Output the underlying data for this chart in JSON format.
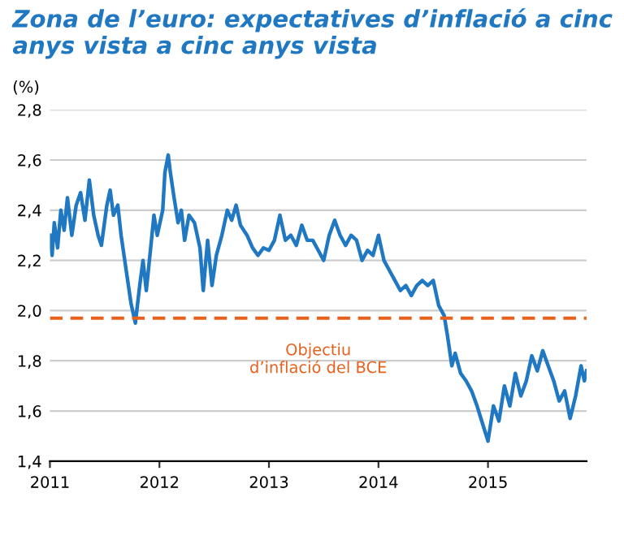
{
  "chart_data": {
    "type": "line",
    "title": "Zona de l’euro: expectatives d’inflació a cinc anys vista a cinc anys vista",
    "ylabel": "(%)",
    "x": [
      2011.0,
      2011.02,
      2011.04,
      2011.07,
      2011.1,
      2011.13,
      2011.16,
      2011.2,
      2011.24,
      2011.28,
      2011.32,
      2011.36,
      2011.4,
      2011.44,
      2011.47,
      2011.52,
      2011.55,
      2011.58,
      2011.62,
      2011.65,
      2011.7,
      2011.74,
      2011.78,
      2011.82,
      2011.85,
      2011.88,
      2011.92,
      2011.95,
      2011.98,
      2012.03,
      2012.05,
      2012.08,
      2012.1,
      2012.13,
      2012.17,
      2012.2,
      2012.23,
      2012.27,
      2012.32,
      2012.37,
      2012.4,
      2012.44,
      2012.48,
      2012.52,
      2012.57,
      2012.62,
      2012.66,
      2012.7,
      2012.74,
      2012.8,
      2012.85,
      2012.9,
      2012.95,
      2013.0,
      2013.05,
      2013.1,
      2013.15,
      2013.2,
      2013.25,
      2013.3,
      2013.35,
      2013.4,
      2013.45,
      2013.5,
      2013.55,
      2013.6,
      2013.65,
      2013.7,
      2013.75,
      2013.8,
      2013.85,
      2013.9,
      2013.95,
      2014.0,
      2014.05,
      2014.1,
      2014.15,
      2014.2,
      2014.25,
      2014.3,
      2014.35,
      2014.4,
      2014.45,
      2014.5,
      2014.55,
      2014.6,
      2014.63,
      2014.67,
      2014.7,
      2014.75,
      2014.8,
      2014.85,
      2014.9,
      2014.95,
      2015.0,
      2015.05,
      2015.1,
      2015.15,
      2015.2,
      2015.25,
      2015.3,
      2015.35,
      2015.4,
      2015.45,
      2015.5,
      2015.55,
      2015.6,
      2015.65,
      2015.7,
      2015.75,
      2015.8,
      2015.85,
      2015.88,
      2015.9
    ],
    "series": [
      {
        "color": "#1f78c1",
        "values": [
          2.3,
          2.22,
          2.35,
          2.25,
          2.4,
          2.32,
          2.45,
          2.3,
          2.42,
          2.47,
          2.36,
          2.52,
          2.38,
          2.3,
          2.26,
          2.42,
          2.48,
          2.38,
          2.42,
          2.3,
          2.15,
          2.03,
          1.95,
          2.1,
          2.2,
          2.08,
          2.25,
          2.38,
          2.3,
          2.4,
          2.55,
          2.62,
          2.55,
          2.46,
          2.35,
          2.4,
          2.28,
          2.38,
          2.35,
          2.25,
          2.08,
          2.28,
          2.1,
          2.22,
          2.3,
          2.4,
          2.36,
          2.42,
          2.34,
          2.3,
          2.25,
          2.22,
          2.25,
          2.24,
          2.28,
          2.38,
          2.28,
          2.3,
          2.26,
          2.34,
          2.28,
          2.28,
          2.24,
          2.2,
          2.3,
          2.36,
          2.3,
          2.26,
          2.3,
          2.28,
          2.2,
          2.24,
          2.22,
          2.3,
          2.2,
          2.16,
          2.12,
          2.08,
          2.1,
          2.06,
          2.1,
          2.12,
          2.1,
          2.12,
          2.02,
          1.98,
          1.9,
          1.78,
          1.83,
          1.75,
          1.72,
          1.68,
          1.62,
          1.55,
          1.48,
          1.62,
          1.56,
          1.7,
          1.62,
          1.75,
          1.66,
          1.72,
          1.82,
          1.76,
          1.84,
          1.78,
          1.72,
          1.64,
          1.68,
          1.57,
          1.66,
          1.78,
          1.72,
          1.76
        ]
      }
    ],
    "xlim": [
      2011.0,
      2015.9
    ],
    "xticks": [
      2011,
      2012,
      2013,
      2014,
      2015
    ],
    "ylim": [
      1.4,
      2.8
    ],
    "yticks": [
      {
        "value": 1.4,
        "label": "1,4"
      },
      {
        "value": 1.6,
        "label": "1,6"
      },
      {
        "value": 1.8,
        "label": "1,8"
      },
      {
        "value": 2.0,
        "label": "2,0"
      },
      {
        "value": 2.2,
        "label": "2,2"
      },
      {
        "value": 2.4,
        "label": "2,4"
      },
      {
        "value": 2.6,
        "label": "2,6"
      },
      {
        "value": 2.8,
        "label": "2,8"
      }
    ],
    "ref_lines": [
      {
        "axis": "y",
        "value": 1.97,
        "label": "Objectiu\nd’inflació del BCE",
        "color": "#e8601c",
        "line_style": "dashed"
      }
    ],
    "grid": "y",
    "legend": false,
    "marker": "none",
    "line_style": "solid"
  }
}
